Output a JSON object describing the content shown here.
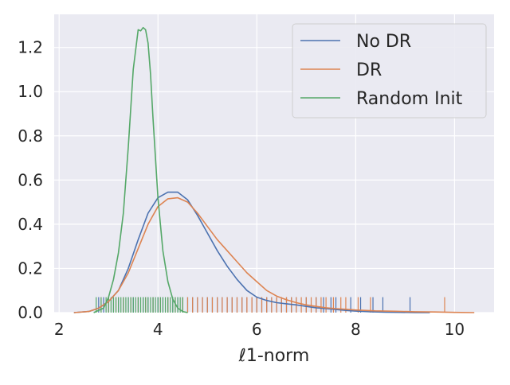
{
  "chart_data": {
    "type": "line",
    "title": "",
    "xlabel": "ℓ1-norm",
    "ylabel": "",
    "xlim": [
      1.9,
      10.8
    ],
    "ylim": [
      0,
      1.35
    ],
    "x_ticks": [
      2,
      4,
      6,
      8,
      10
    ],
    "y_ticks": [
      0.0,
      0.2,
      0.4,
      0.6,
      0.8,
      1.0,
      1.2
    ],
    "x_tick_labels": [
      "2",
      "4",
      "6",
      "8",
      "10"
    ],
    "y_tick_labels": [
      "0.0",
      "0.2",
      "0.4",
      "0.6",
      "0.8",
      "1.0",
      "1.2"
    ],
    "grid": true,
    "legend_position": "top-right",
    "rug_height": 0.07,
    "series": [
      {
        "name": "No DR",
        "color": "#4c72b0",
        "x": [
          2.3,
          2.6,
          2.8,
          3.0,
          3.2,
          3.4,
          3.6,
          3.8,
          4.0,
          4.2,
          4.4,
          4.6,
          4.8,
          5.0,
          5.2,
          5.4,
          5.6,
          5.8,
          6.0,
          6.2,
          6.4,
          6.6,
          6.8,
          7.0,
          7.2,
          7.4,
          7.6,
          7.8,
          8.0,
          8.3,
          8.6,
          8.9,
          9.2,
          9.5
        ],
        "y": [
          0.0,
          0.005,
          0.02,
          0.05,
          0.1,
          0.2,
          0.33,
          0.45,
          0.52,
          0.545,
          0.545,
          0.51,
          0.44,
          0.36,
          0.28,
          0.21,
          0.15,
          0.1,
          0.07,
          0.055,
          0.045,
          0.04,
          0.035,
          0.028,
          0.022,
          0.018,
          0.014,
          0.01,
          0.007,
          0.004,
          0.002,
          0.001,
          0.0005,
          0.0
        ]
      },
      {
        "name": "DR",
        "color": "#dd8452",
        "x": [
          2.3,
          2.6,
          2.8,
          3.0,
          3.2,
          3.4,
          3.6,
          3.8,
          4.0,
          4.2,
          4.4,
          4.6,
          4.8,
          5.0,
          5.2,
          5.4,
          5.6,
          5.8,
          6.0,
          6.2,
          6.4,
          6.6,
          6.8,
          7.0,
          7.2,
          7.4,
          7.6,
          7.8,
          8.0,
          8.4,
          8.8,
          9.2,
          9.6,
          10.0,
          10.4
        ],
        "y": [
          0.0,
          0.005,
          0.02,
          0.05,
          0.1,
          0.18,
          0.29,
          0.4,
          0.48,
          0.515,
          0.52,
          0.5,
          0.45,
          0.39,
          0.33,
          0.28,
          0.23,
          0.18,
          0.14,
          0.1,
          0.075,
          0.058,
          0.045,
          0.035,
          0.028,
          0.022,
          0.018,
          0.015,
          0.012,
          0.008,
          0.006,
          0.004,
          0.003,
          0.001,
          0.0
        ]
      },
      {
        "name": "Random Init",
        "color": "#55a868",
        "x": [
          2.7,
          2.9,
          3.0,
          3.1,
          3.2,
          3.3,
          3.4,
          3.5,
          3.6,
          3.65,
          3.7,
          3.75,
          3.8,
          3.85,
          3.9,
          4.0,
          4.1,
          4.2,
          4.3,
          4.4,
          4.5,
          4.6
        ],
        "y": [
          0.0,
          0.02,
          0.07,
          0.15,
          0.27,
          0.45,
          0.75,
          1.1,
          1.28,
          1.275,
          1.29,
          1.28,
          1.22,
          1.08,
          0.88,
          0.52,
          0.28,
          0.14,
          0.06,
          0.02,
          0.005,
          0.0
        ]
      }
    ],
    "rug": [
      {
        "name": "No DR",
        "color": "#4c72b0",
        "x": [
          2.8,
          2.9,
          3.0,
          3.1,
          3.2,
          3.3,
          3.4,
          3.5,
          3.6,
          3.7,
          3.8,
          3.9,
          4.0,
          4.1,
          4.2,
          4.3,
          4.4,
          4.5,
          4.6,
          4.7,
          4.8,
          4.9,
          5.0,
          5.1,
          5.2,
          5.3,
          5.4,
          5.5,
          5.6,
          5.7,
          5.8,
          5.9,
          6.0,
          6.1,
          6.2,
          6.3,
          6.4,
          6.5,
          6.6,
          6.7,
          6.8,
          7.0,
          7.2,
          7.35,
          7.5,
          7.6,
          7.9,
          8.1,
          8.35,
          8.55,
          9.1
        ]
      },
      {
        "name": "DR",
        "color": "#dd8452",
        "x": [
          2.85,
          3.0,
          3.15,
          3.3,
          3.45,
          3.6,
          3.75,
          3.9,
          4.05,
          4.2,
          4.35,
          4.5,
          4.6,
          4.7,
          4.8,
          4.9,
          5.0,
          5.1,
          5.2,
          5.3,
          5.4,
          5.5,
          5.6,
          5.7,
          5.8,
          5.9,
          6.0,
          6.1,
          6.2,
          6.3,
          6.4,
          6.5,
          6.6,
          6.7,
          6.8,
          6.9,
          7.0,
          7.1,
          7.2,
          7.3,
          7.4,
          7.55,
          7.7,
          7.8,
          8.05,
          8.3,
          9.8
        ]
      },
      {
        "name": "Random Init",
        "color": "#55a868",
        "x": [
          2.75,
          2.85,
          2.95,
          3.0,
          3.05,
          3.1,
          3.15,
          3.2,
          3.25,
          3.3,
          3.35,
          3.4,
          3.45,
          3.5,
          3.55,
          3.6,
          3.65,
          3.7,
          3.75,
          3.8,
          3.85,
          3.9,
          3.95,
          4.0,
          4.05,
          4.1,
          4.15,
          4.2,
          4.25,
          4.3,
          4.35,
          4.4,
          4.45,
          4.5
        ]
      }
    ]
  }
}
